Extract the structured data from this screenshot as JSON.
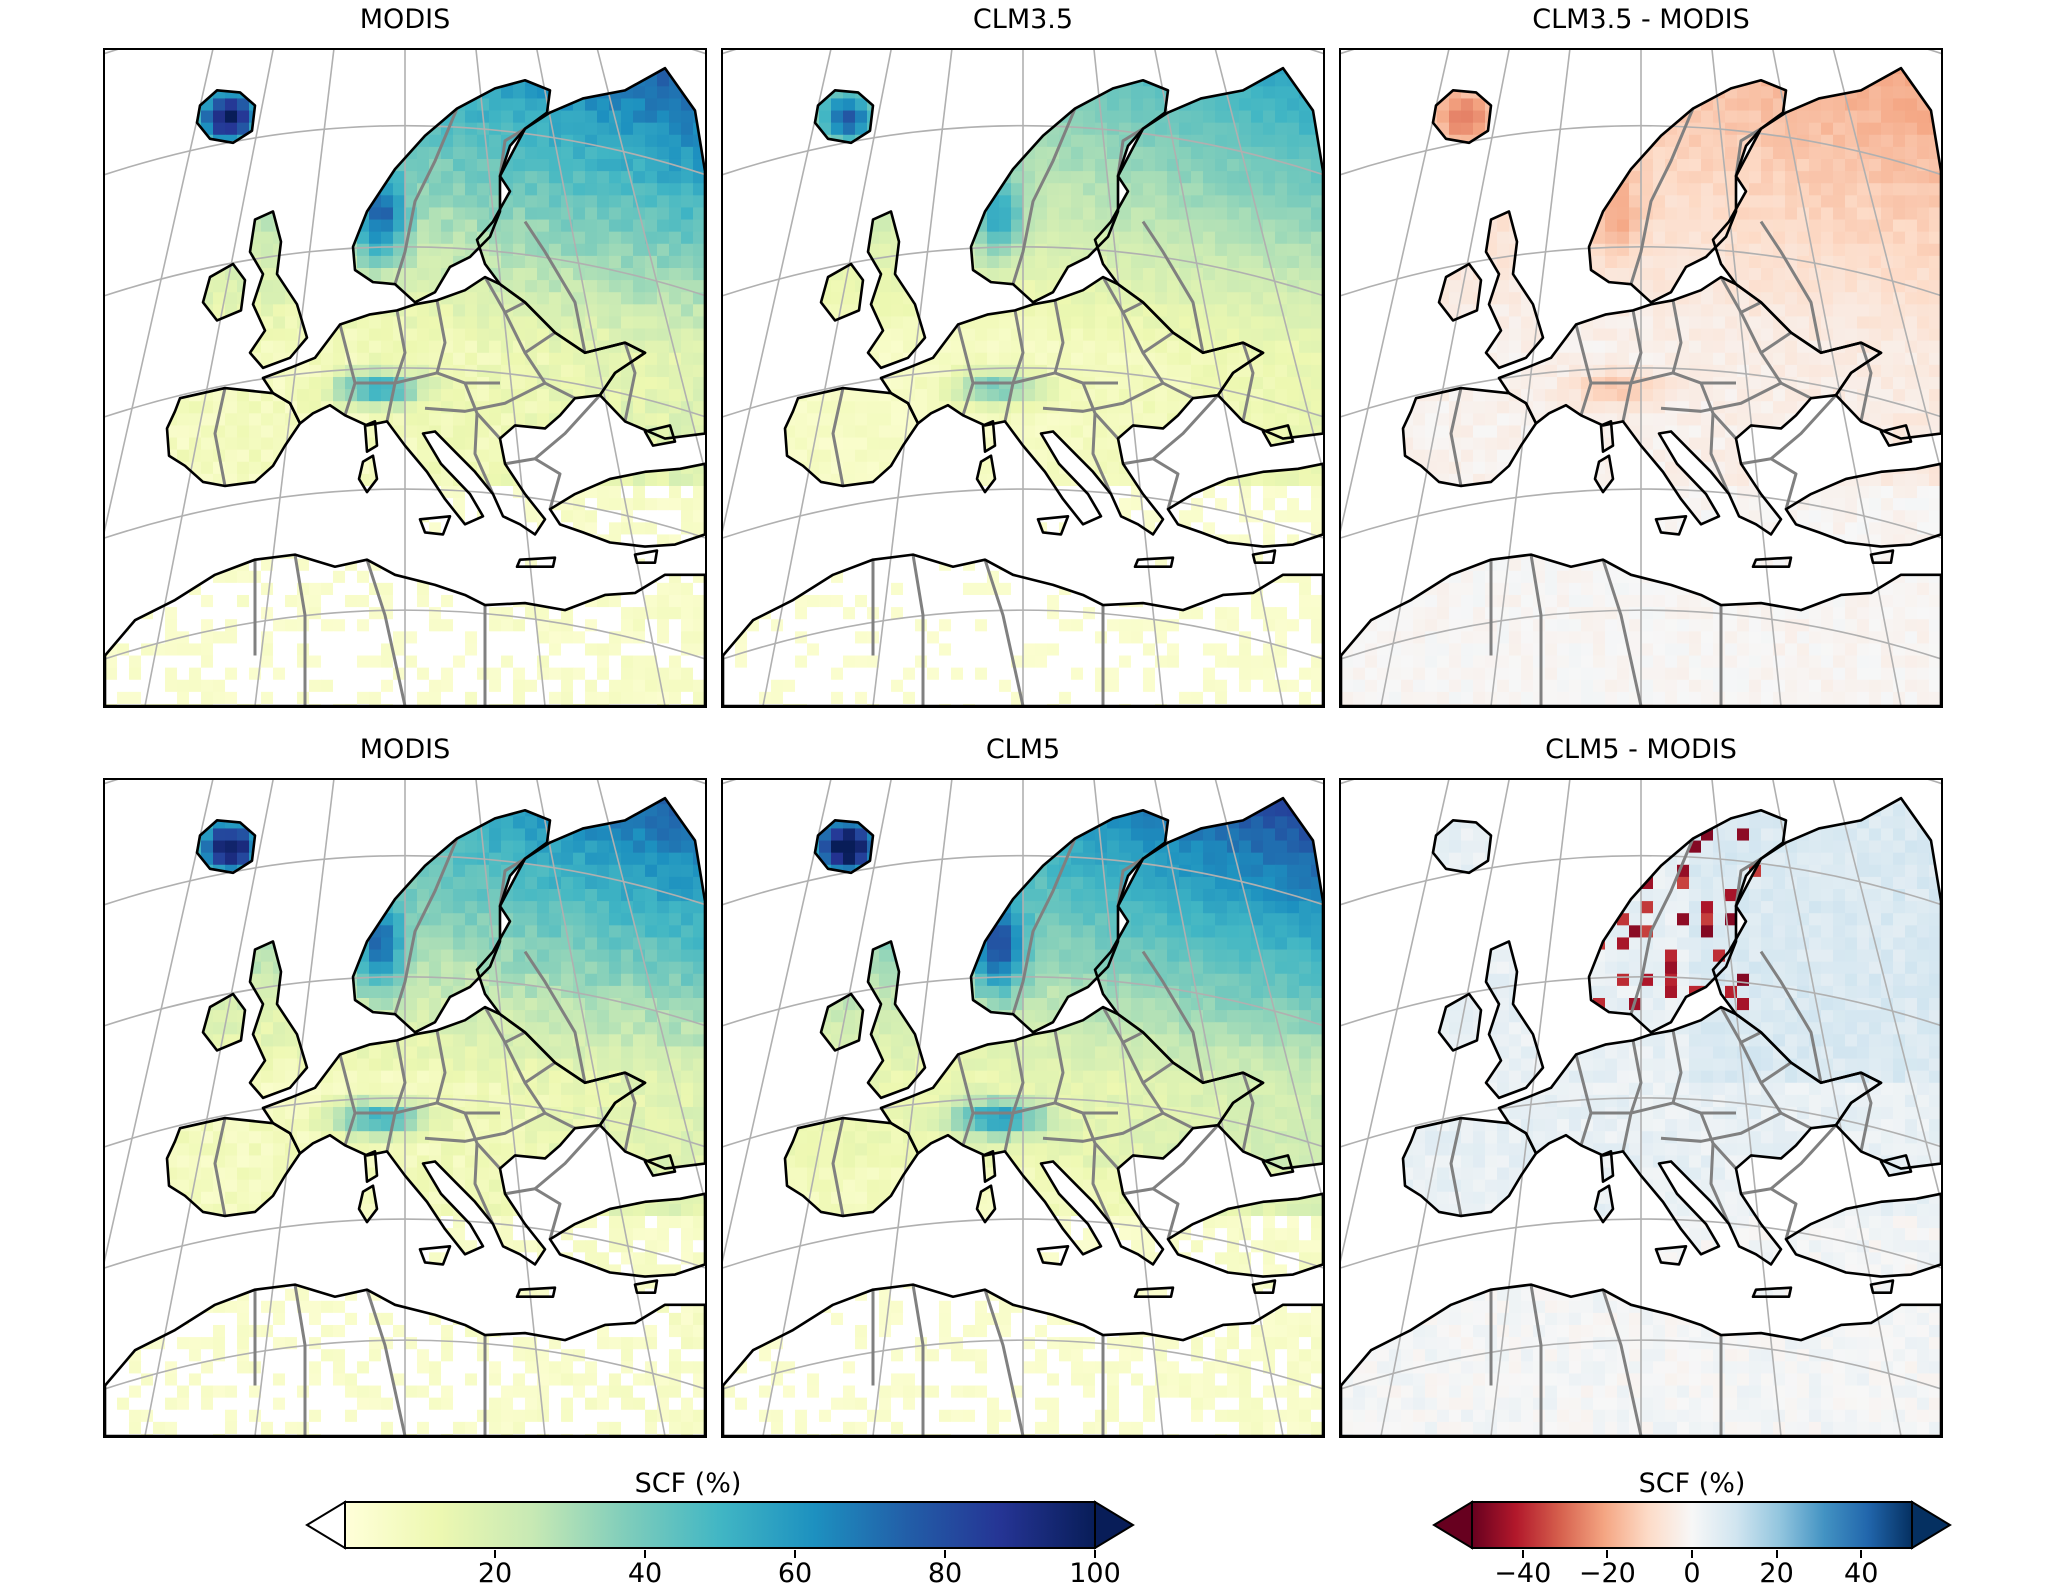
{
  "panels": [
    {
      "title": "MODIS",
      "field": "modis",
      "colormap": "seq"
    },
    {
      "title": "CLM3.5",
      "field": "clm35",
      "colormap": "seq"
    },
    {
      "title": "CLM3.5 - MODIS",
      "field": "diff35",
      "colormap": "div"
    },
    {
      "title": "MODIS",
      "field": "modis",
      "colormap": "seq"
    },
    {
      "title": "CLM5",
      "field": "clm5",
      "colormap": "seq"
    },
    {
      "title": "CLM5 - MODIS",
      "field": "diff5",
      "colormap": "div"
    }
  ],
  "colorbar_left": {
    "label": "SCF (%)",
    "ticks": [
      "20",
      "40",
      "60",
      "80",
      "100"
    ],
    "tick_values": [
      20,
      40,
      60,
      80,
      100
    ],
    "range": [
      0,
      100
    ],
    "extend": "both",
    "colors": [
      "#ffffd9",
      "#edf8b1",
      "#c7e9b4",
      "#7fcdbb",
      "#41b6c4",
      "#1d91c0",
      "#225ea8",
      "#253494",
      "#081d58"
    ]
  },
  "colorbar_right": {
    "label": "SCF (%)",
    "ticks": [
      "−40",
      "−20",
      "0",
      "20",
      "40"
    ],
    "tick_values": [
      -40,
      -20,
      0,
      20,
      40
    ],
    "range": [
      -52,
      52
    ],
    "extend": "both",
    "colors": [
      "#67001f",
      "#b2182b",
      "#d6604d",
      "#f4a582",
      "#fddbc7",
      "#f7f7f7",
      "#d1e5f0",
      "#92c5de",
      "#4393c3",
      "#2166ac",
      "#053061"
    ]
  },
  "map_style": {
    "coast_color": "#000000",
    "border_color": "#808080",
    "graticule_color": "#b0b0b0"
  }
}
